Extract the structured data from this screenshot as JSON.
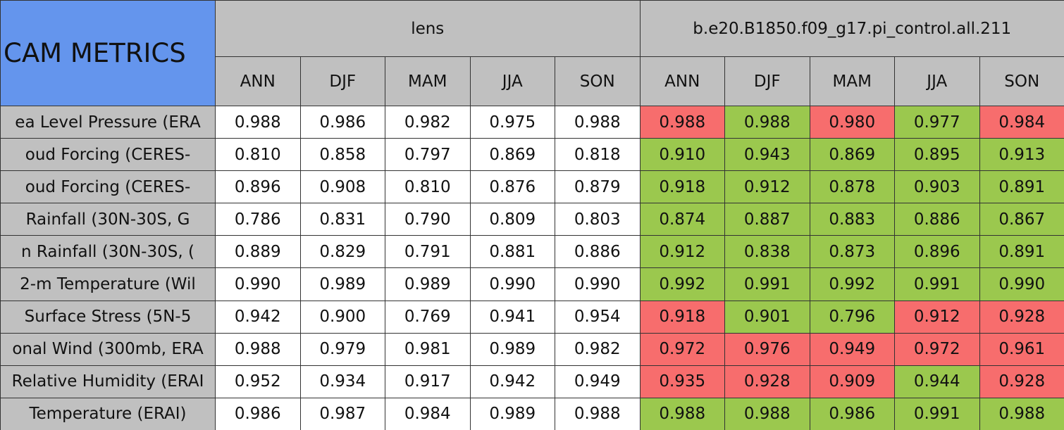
{
  "header": {
    "title": "CAM METRICS",
    "groups": [
      {
        "name": "lens",
        "seasons": [
          "ANN",
          "DJF",
          "MAM",
          "JJA",
          "SON"
        ]
      },
      {
        "name": "b.e20.B1850.f09_g17.pi_control.all.211",
        "seasons": [
          "ANN",
          "DJF",
          "MAM",
          "JJA",
          "SON"
        ]
      }
    ]
  },
  "table": {
    "rows": [
      {
        "label": "ea Level Pressure (ERA",
        "values": [
          "0.988",
          "0.986",
          "0.982",
          "0.975",
          "0.988",
          "0.988",
          "0.988",
          "0.980",
          "0.977",
          "0.984"
        ],
        "colors": [
          "#f76d6d",
          "#9bc84e",
          "#f76d6d",
          "#9bc84e",
          "#f76d6d"
        ]
      },
      {
        "label": "oud Forcing (CERES-",
        "values": [
          "0.810",
          "0.858",
          "0.797",
          "0.869",
          "0.818",
          "0.910",
          "0.943",
          "0.869",
          "0.895",
          "0.913"
        ],
        "colors": [
          "#9bc84e",
          "#9bc84e",
          "#9bc84e",
          "#9bc84e",
          "#9bc84e"
        ]
      },
      {
        "label": "oud Forcing (CERES-",
        "values": [
          "0.896",
          "0.908",
          "0.810",
          "0.876",
          "0.879",
          "0.918",
          "0.912",
          "0.878",
          "0.903",
          "0.891"
        ],
        "colors": [
          "#9bc84e",
          "#9bc84e",
          "#9bc84e",
          "#9bc84e",
          "#9bc84e"
        ]
      },
      {
        "label": "Rainfall (30N-30S, G",
        "values": [
          "0.786",
          "0.831",
          "0.790",
          "0.809",
          "0.803",
          "0.874",
          "0.887",
          "0.883",
          "0.886",
          "0.867"
        ],
        "colors": [
          "#9bc84e",
          "#9bc84e",
          "#9bc84e",
          "#9bc84e",
          "#9bc84e"
        ]
      },
      {
        "label": "n Rainfall (30N-30S, (",
        "values": [
          "0.889",
          "0.829",
          "0.791",
          "0.881",
          "0.886",
          "0.912",
          "0.838",
          "0.873",
          "0.896",
          "0.891"
        ],
        "colors": [
          "#9bc84e",
          "#9bc84e",
          "#9bc84e",
          "#9bc84e",
          "#9bc84e"
        ]
      },
      {
        "label": "2-m Temperature (Wil",
        "values": [
          "0.990",
          "0.989",
          "0.989",
          "0.990",
          "0.990",
          "0.992",
          "0.991",
          "0.992",
          "0.991",
          "0.990"
        ],
        "colors": [
          "#9bc84e",
          "#9bc84e",
          "#9bc84e",
          "#9bc84e",
          "#9bc84e"
        ]
      },
      {
        "label": "Surface Stress (5N-5",
        "values": [
          "0.942",
          "0.900",
          "0.769",
          "0.941",
          "0.954",
          "0.918",
          "0.901",
          "0.796",
          "0.912",
          "0.928"
        ],
        "colors": [
          "#f76d6d",
          "#9bc84e",
          "#9bc84e",
          "#f76d6d",
          "#f76d6d"
        ]
      },
      {
        "label": "onal Wind (300mb, ERA",
        "values": [
          "0.988",
          "0.979",
          "0.981",
          "0.989",
          "0.982",
          "0.972",
          "0.976",
          "0.949",
          "0.972",
          "0.961"
        ],
        "colors": [
          "#f76d6d",
          "#f76d6d",
          "#f76d6d",
          "#f76d6d",
          "#f76d6d"
        ]
      },
      {
        "label": "Relative Humidity (ERAI",
        "values": [
          "0.952",
          "0.934",
          "0.917",
          "0.942",
          "0.949",
          "0.935",
          "0.928",
          "0.909",
          "0.944",
          "0.928"
        ],
        "colors": [
          "#f76d6d",
          "#f76d6d",
          "#f76d6d",
          "#9bc84e",
          "#f76d6d"
        ]
      },
      {
        "label": "Temperature (ERAI)",
        "values": [
          "0.986",
          "0.987",
          "0.984",
          "0.989",
          "0.988",
          "0.988",
          "0.988",
          "0.986",
          "0.991",
          "0.988"
        ],
        "colors": [
          "#9bc84e",
          "#9bc84e",
          "#9bc84e",
          "#9bc84e",
          "#9bc84e"
        ]
      }
    ]
  }
}
